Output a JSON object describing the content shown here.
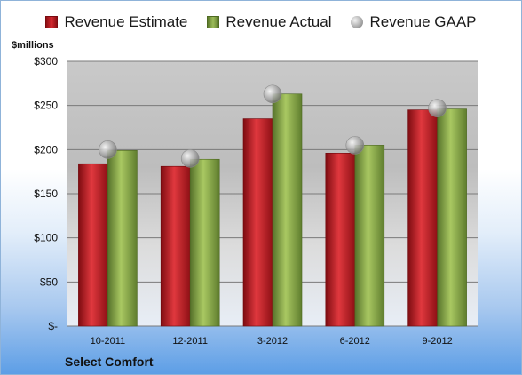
{
  "legend": {
    "estimate": "Revenue Estimate",
    "actual": "Revenue Actual",
    "gaap": "Revenue GAAP"
  },
  "unit_label": "$millions",
  "company": "Select Comfort",
  "colors": {
    "estimate": "#c8232b",
    "actual": "#8fae4e",
    "gaap": "#a6a6a6",
    "grid": "#7a7a7a"
  },
  "chart_data": {
    "type": "bar",
    "categories": [
      "10-2011",
      "12-2011",
      "3-2012",
      "6-2012",
      "9-2012"
    ],
    "series": [
      {
        "name": "Revenue Estimate",
        "type": "bar",
        "values": [
          184,
          181,
          235,
          196,
          245
        ]
      },
      {
        "name": "Revenue Actual",
        "type": "bar",
        "values": [
          199,
          189,
          263,
          205,
          246
        ]
      },
      {
        "name": "Revenue GAAP",
        "type": "scatter",
        "values": [
          200,
          190,
          263,
          205,
          247
        ]
      }
    ],
    "ylim": [
      0,
      300
    ],
    "yticks": [
      0,
      50,
      100,
      150,
      200,
      250,
      300
    ],
    "ytick_labels": [
      "$-",
      "$50",
      "$100",
      "$150",
      "$200",
      "$250",
      "$300"
    ],
    "grid": true,
    "legend_position": "top"
  }
}
